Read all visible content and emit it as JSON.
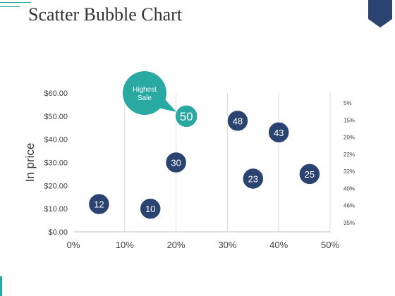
{
  "slide": {
    "title": "Scatter Bubble Chart"
  },
  "chart_data": {
    "type": "scatter",
    "title": "",
    "xlabel": "",
    "ylabel": "In price",
    "xlim": [
      0,
      50
    ],
    "ylim": [
      0,
      60
    ],
    "x_ticks": [
      "0%",
      "10%",
      "20%",
      "30%",
      "40%",
      "50%"
    ],
    "y_ticks": [
      "$0.00",
      "$10.00",
      "$20.00",
      "$30.00",
      "$40.00",
      "$50.00",
      "$60.00"
    ],
    "right_labels": [
      "5%",
      "15%",
      "20%",
      "22%",
      "32%",
      "40%",
      "46%",
      "35%"
    ],
    "grid": {
      "vertical": true,
      "horizontal": false
    },
    "points": [
      {
        "x": 5,
        "y": 12,
        "label": "12",
        "highlight": false
      },
      {
        "x": 15,
        "y": 10,
        "label": "10",
        "highlight": false
      },
      {
        "x": 20,
        "y": 30,
        "label": "30",
        "highlight": false
      },
      {
        "x": 22,
        "y": 50,
        "label": "50",
        "highlight": true
      },
      {
        "x": 32,
        "y": 48,
        "label": "48",
        "highlight": false
      },
      {
        "x": 35,
        "y": 23,
        "label": "23",
        "highlight": false
      },
      {
        "x": 40,
        "y": 43,
        "label": "43",
        "highlight": false
      },
      {
        "x": 46,
        "y": 25,
        "label": "25",
        "highlight": false
      }
    ],
    "callout": {
      "text_lines": [
        "Highest",
        "Sale"
      ],
      "target_label": "50"
    },
    "colors": {
      "bubble": "#2b4370",
      "highlight": "#2aa9a3",
      "accent": "#2aa9a3",
      "grid": "#d9d9d9",
      "text": "#404040"
    }
  }
}
